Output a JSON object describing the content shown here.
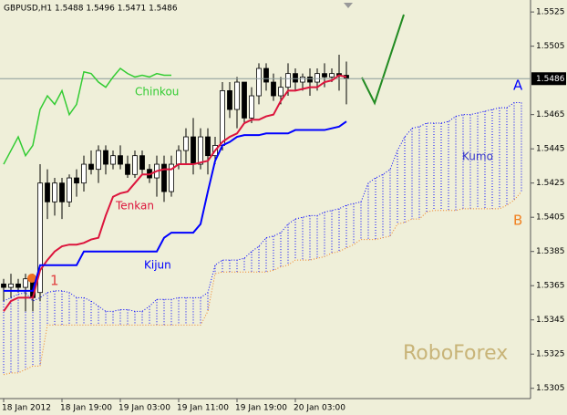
{
  "chart_data": {
    "type": "candlestick",
    "title": "GBPUSD,H1  1.5488 1.5496 1.5471 1.5486",
    "ylim": [
      1.5299,
      1.5532
    ],
    "yticks": [
      1.5525,
      1.5505,
      1.5465,
      1.5445,
      1.5425,
      1.5405,
      1.5385,
      1.5365,
      1.5345,
      1.5325,
      1.5305
    ],
    "xticks": [
      {
        "value": 0,
        "label": "18 Jan 2012"
      },
      {
        "value": 8,
        "label": "18 Jan 19:00"
      },
      {
        "value": 16,
        "label": "19 Jan 03:00"
      },
      {
        "value": 24,
        "label": "19 Jan 11:00"
      },
      {
        "value": 32,
        "label": "19 Jan 19:00"
      },
      {
        "value": 40,
        "label": "20 Jan 03:00"
      }
    ],
    "grid": false,
    "current_price": 1.5486,
    "candle_colors": {
      "up": "#ffffff",
      "down": "#000000"
    },
    "ohlc": {
      "open": [
        1.5366,
        1.5364,
        1.5366,
        1.5364,
        1.5369,
        1.5361,
        1.5425,
        1.5414,
        1.5425,
        1.5414,
        1.5428,
        1.5425,
        1.5436,
        1.5433,
        1.5444,
        1.5436,
        1.5441,
        1.5436,
        1.543,
        1.5441,
        1.5433,
        1.5428,
        1.5436,
        1.542,
        1.5436,
        1.5444,
        1.5452,
        1.5436,
        1.5452,
        1.5441,
        1.5447,
        1.5479,
        1.5468,
        1.5484,
        1.5463,
        1.5476,
        1.5492,
        1.5484,
        1.5476,
        1.5481,
        1.5489,
        1.5484,
        1.5487,
        1.5484,
        1.5489,
        1.5487,
        1.5489,
        1.5488,
        null,
        null,
        null,
        null,
        null,
        null,
        null,
        null,
        null,
        null,
        null,
        null,
        null,
        null,
        null,
        null,
        null,
        null,
        null,
        null,
        null,
        null,
        null,
        null
      ],
      "high": [
        1.5369,
        1.5372,
        1.5369,
        1.5372,
        1.5372,
        1.5436,
        1.5433,
        1.5428,
        1.5428,
        1.543,
        1.5433,
        1.5441,
        1.5444,
        1.5447,
        1.5447,
        1.5444,
        1.5447,
        1.5441,
        1.5444,
        1.5444,
        1.5436,
        1.5441,
        1.5441,
        1.5441,
        1.5447,
        1.5457,
        1.5463,
        1.5457,
        1.5457,
        1.5452,
        1.5484,
        1.5484,
        1.5487,
        1.5484,
        1.5481,
        1.5495,
        1.5495,
        1.5489,
        1.5487,
        1.5495,
        1.5492,
        1.5489,
        1.5492,
        1.5492,
        1.5495,
        1.5492,
        1.55,
        1.5496,
        null,
        null,
        null,
        null,
        null,
        null,
        null,
        null,
        null,
        null,
        null,
        null,
        null,
        null,
        null,
        null,
        null,
        null,
        null,
        null,
        null,
        null,
        null,
        null
      ],
      "low": [
        1.5356,
        1.5358,
        1.5361,
        1.535,
        1.535,
        1.5356,
        1.5404,
        1.5406,
        1.5404,
        1.5411,
        1.5417,
        1.542,
        1.543,
        1.5425,
        1.543,
        1.5433,
        1.5433,
        1.5428,
        1.5428,
        1.543,
        1.5425,
        1.5417,
        1.5414,
        1.5417,
        1.5433,
        1.5436,
        1.543,
        1.5433,
        1.543,
        1.5436,
        1.5444,
        1.5463,
        1.5457,
        1.546,
        1.546,
        1.5471,
        1.5479,
        1.5473,
        1.5471,
        1.5476,
        1.5479,
        1.5479,
        1.5476,
        1.5479,
        1.5481,
        1.5484,
        1.5479,
        1.5471,
        null,
        null,
        null,
        null,
        null,
        null,
        null,
        null,
        null,
        null,
        null,
        null,
        null,
        null,
        null,
        null,
        null,
        null,
        null,
        null,
        null,
        null,
        null,
        null
      ],
      "close": [
        1.5364,
        1.5366,
        1.5364,
        1.5369,
        1.5358,
        1.5425,
        1.5414,
        1.5425,
        1.5414,
        1.5428,
        1.5425,
        1.5436,
        1.5433,
        1.5444,
        1.5436,
        1.5441,
        1.5436,
        1.543,
        1.5441,
        1.5433,
        1.5428,
        1.5436,
        1.542,
        1.5436,
        1.5444,
        1.5452,
        1.5436,
        1.5452,
        1.5441,
        1.5447,
        1.5479,
        1.5468,
        1.5484,
        1.5463,
        1.5476,
        1.5492,
        1.5484,
        1.5476,
        1.5481,
        1.5489,
        1.5484,
        1.5487,
        1.5484,
        1.5489,
        1.5487,
        1.5489,
        1.5488,
        1.5486,
        null,
        null,
        null,
        null,
        null,
        null,
        null,
        null,
        null,
        null,
        null,
        null,
        null,
        null,
        null,
        null,
        null,
        null,
        null,
        null,
        null,
        null,
        null,
        null
      ]
    },
    "series": [
      {
        "name": "Chinkou",
        "color": "#33cc33",
        "style": "solid",
        "values": [
          1.5436,
          1.5444,
          1.5452,
          1.5441,
          1.5447,
          1.5468,
          1.5476,
          1.5471,
          1.5479,
          1.5465,
          1.5471,
          1.549,
          1.5489,
          1.5484,
          1.5481,
          1.5487,
          1.5492,
          1.5489,
          1.5487,
          1.5488,
          1.5487,
          1.5489,
          1.5488,
          1.5488,
          null,
          null,
          null,
          null,
          null,
          null,
          null,
          null,
          null,
          null,
          null,
          null,
          null,
          null,
          null,
          null,
          null,
          null,
          null,
          null,
          null,
          null,
          null,
          null,
          null,
          null,
          null,
          null,
          null,
          null,
          null,
          null,
          null,
          null,
          null,
          null,
          null,
          null,
          null,
          null,
          null,
          null,
          null,
          null,
          null,
          null,
          null,
          null
        ]
      },
      {
        "name": "Tenkan",
        "color": "#dc143c",
        "style": "solid",
        "values": [
          1.535,
          1.5356,
          1.5358,
          1.5358,
          1.5358,
          1.5374,
          1.538,
          1.5385,
          1.5388,
          1.5389,
          1.5389,
          1.539,
          1.5392,
          1.5393,
          1.5406,
          1.5417,
          1.5419,
          1.542,
          1.5425,
          1.543,
          1.543,
          1.5432,
          1.5433,
          1.5433,
          1.5436,
          1.5436,
          1.5436,
          1.5437,
          1.5438,
          1.5444,
          1.5449,
          1.5452,
          1.5454,
          1.546,
          1.5462,
          1.5462,
          1.5464,
          1.5465,
          1.5473,
          1.5479,
          1.5479,
          1.548,
          1.5481,
          1.5481,
          1.5484,
          1.5485,
          1.5488,
          1.5487,
          null,
          null,
          null,
          null,
          null,
          null,
          null,
          null,
          null,
          null,
          null,
          null,
          null,
          null,
          null,
          null,
          null,
          null,
          null,
          null,
          null,
          null,
          null,
          null
        ]
      },
      {
        "name": "Kijun",
        "color": "#0000ff",
        "style": "solid",
        "values": [
          1.5362,
          1.5362,
          1.5362,
          1.5362,
          1.5362,
          1.5377,
          1.5377,
          1.5377,
          1.5377,
          1.5377,
          1.5377,
          1.5385,
          1.5385,
          1.5385,
          1.5385,
          1.5385,
          1.5385,
          1.5385,
          1.5385,
          1.5385,
          1.5385,
          1.5385,
          1.5393,
          1.5396,
          1.5396,
          1.5396,
          1.5396,
          1.5401,
          1.542,
          1.5438,
          1.5447,
          1.5449,
          1.5452,
          1.5453,
          1.5453,
          1.5453,
          1.5454,
          1.5454,
          1.5454,
          1.5454,
          1.5456,
          1.5456,
          1.5456,
          1.5456,
          1.5456,
          1.5457,
          1.5458,
          1.5461,
          null,
          null,
          null,
          null,
          null,
          null,
          null,
          null,
          null,
          null,
          null,
          null,
          null,
          null,
          null,
          null,
          null,
          null,
          null,
          null,
          null,
          null,
          null,
          null
        ]
      },
      {
        "name": "A",
        "color": "#0000ff",
        "style": "dotted",
        "values": [
          1.5356,
          1.5358,
          1.536,
          1.5361,
          1.5356,
          1.5358,
          1.5361,
          1.5362,
          1.5362,
          1.5361,
          1.5358,
          1.5358,
          1.5356,
          1.5353,
          1.535,
          1.535,
          1.5351,
          1.5351,
          1.535,
          1.535,
          1.5353,
          1.5357,
          1.5357,
          1.5357,
          1.5358,
          1.5358,
          1.5358,
          1.5358,
          1.5361,
          1.5377,
          1.538,
          1.538,
          1.538,
          1.5381,
          1.5385,
          1.5388,
          1.5393,
          1.5394,
          1.5396,
          1.5401,
          1.5404,
          1.5405,
          1.5406,
          1.5406,
          1.5408,
          1.5409,
          1.541,
          1.5412,
          1.5413,
          1.5414,
          1.5425,
          1.5428,
          1.543,
          1.5433,
          1.5444,
          1.5452,
          1.5457,
          1.5458,
          1.546,
          1.546,
          1.546,
          1.5461,
          1.5464,
          1.5465,
          1.5465,
          1.5466,
          1.5467,
          1.5468,
          1.5469,
          1.5469,
          1.5472,
          1.5472
        ]
      },
      {
        "name": "B",
        "color": "#f08020",
        "style": "dotted",
        "values": [
          1.5313,
          1.5314,
          1.5314,
          1.5316,
          1.5318,
          1.5318,
          1.5342,
          1.5342,
          1.5342,
          1.5342,
          1.5342,
          1.5342,
          1.5342,
          1.5342,
          1.5342,
          1.5342,
          1.5342,
          1.5342,
          1.5342,
          1.5342,
          1.5342,
          1.5342,
          1.5342,
          1.5342,
          1.5342,
          1.5342,
          1.5342,
          1.5342,
          1.535,
          1.5372,
          1.5373,
          1.5373,
          1.5373,
          1.5373,
          1.5373,
          1.5373,
          1.5373,
          1.5374,
          1.5376,
          1.5377,
          1.538,
          1.538,
          1.538,
          1.5381,
          1.5382,
          1.5384,
          1.5385,
          1.5387,
          1.5389,
          1.5392,
          1.5392,
          1.5392,
          1.5393,
          1.5394,
          1.5401,
          1.5402,
          1.5404,
          1.5404,
          1.5408,
          1.5409,
          1.5409,
          1.5409,
          1.5409,
          1.541,
          1.541,
          1.541,
          1.541,
          1.541,
          1.541,
          1.5412,
          1.5415,
          1.542
        ]
      }
    ],
    "annotations": [
      {
        "text": "Kumo",
        "color": "#3333cc"
      },
      {
        "text": "1",
        "color": "#e04040"
      },
      {
        "text": "RoboForex",
        "color": "#c8b478"
      }
    ]
  }
}
